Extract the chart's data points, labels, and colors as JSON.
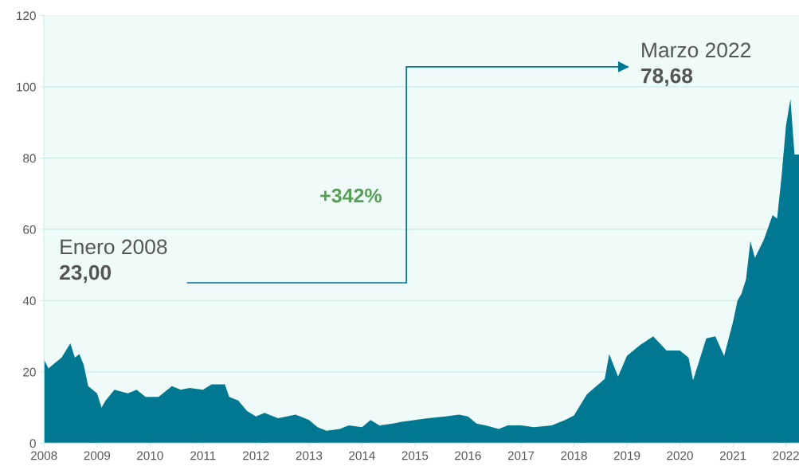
{
  "chart_data": {
    "type": "area",
    "annotations": [
      "Enero 2008",
      "23,00",
      "Marzo 2022",
      "78,68",
      "+342%"
    ],
    "series": [
      {
        "color": "#007891",
        "x": [
          "2008-01",
          "2008-02",
          "2008-03",
          "2008-05",
          "2008-07",
          "2008-08",
          "2008-09",
          "2008-10",
          "2008-11",
          "2009-01",
          "2009-02",
          "2009-03",
          "2009-05",
          "2009-08",
          "2009-10",
          "2009-12",
          "2010-03",
          "2010-06",
          "2010-08",
          "2010-10",
          "2011-01",
          "2011-03",
          "2011-06",
          "2011-07",
          "2011-09",
          "2011-11",
          "2012-01",
          "2012-03",
          "2012-06",
          "2012-08",
          "2012-10",
          "2013-01",
          "2013-03",
          "2013-05",
          "2013-08",
          "2013-10",
          "2014-01",
          "2014-03",
          "2014-05",
          "2014-08",
          "2014-10",
          "2015-01",
          "2015-04",
          "2015-08",
          "2015-11",
          "2016-01",
          "2016-03",
          "2016-05",
          "2016-08",
          "2016-10",
          "2017-01",
          "2017-04",
          "2017-08",
          "2017-11",
          "2018-01",
          "2018-04",
          "2018-08",
          "2018-09",
          "2018-11",
          "2019-01",
          "2019-04",
          "2019-07",
          "2019-10",
          "2020-01",
          "2020-03",
          "2020-04",
          "2020-07",
          "2020-09",
          "2020-11",
          "2021-01",
          "2021-02",
          "2021-03",
          "2021-04",
          "2021-05",
          "2021-06",
          "2021-08",
          "2021-10",
          "2021-11",
          "2021-12",
          "2022-01",
          "2022-02",
          "2022-03",
          "2022-04"
        ],
        "values": [
          23.5,
          21,
          22,
          24,
          28,
          24,
          25,
          22,
          16,
          14,
          10,
          12,
          15,
          14,
          15,
          13,
          13,
          16,
          15,
          15.5,
          15,
          16.5,
          16.5,
          13,
          12,
          9,
          7.5,
          8.5,
          7,
          7.5,
          8,
          6.5,
          4.5,
          3.5,
          4,
          5,
          4.5,
          6.5,
          5,
          5.5,
          6,
          6.5,
          7,
          7.5,
          8,
          7.5,
          5.5,
          5,
          4,
          5,
          5,
          4.5,
          5,
          6.5,
          7.8,
          13.8,
          18,
          25,
          18.7,
          24.5,
          27.5,
          30,
          26,
          26,
          24,
          17.6,
          29.4,
          30,
          24.5,
          34,
          40,
          42,
          46,
          56.7,
          52,
          57,
          64,
          63,
          74.5,
          89,
          96.6,
          81,
          81
        ]
      }
    ],
    "xlim": [
      "2008-01",
      "2022-04"
    ],
    "xticks": [
      {
        "value": "2008-01",
        "label": "2008"
      },
      {
        "value": "2009-01",
        "label": "2009"
      },
      {
        "value": "2010-01",
        "label": "2010"
      },
      {
        "value": "2011-01",
        "label": "2011"
      },
      {
        "value": "2012-01",
        "label": "2012"
      },
      {
        "value": "2013-01",
        "label": "2013"
      },
      {
        "value": "2014-01",
        "label": "2014"
      },
      {
        "value": "2015-01",
        "label": "2015"
      },
      {
        "value": "2016-01",
        "label": "2016"
      },
      {
        "value": "2017-01",
        "label": "2017"
      },
      {
        "value": "2018-01",
        "label": "2018"
      },
      {
        "value": "2019-01",
        "label": "2019"
      },
      {
        "value": "2020-01",
        "label": "2020"
      },
      {
        "value": "2021-01",
        "label": "2021"
      },
      {
        "value": "2022-01",
        "label": "2022"
      }
    ],
    "ylim": [
      0,
      120
    ],
    "yticks": [
      0,
      20,
      40,
      60,
      80,
      100,
      120
    ],
    "grid": "y",
    "legend": false
  }
}
